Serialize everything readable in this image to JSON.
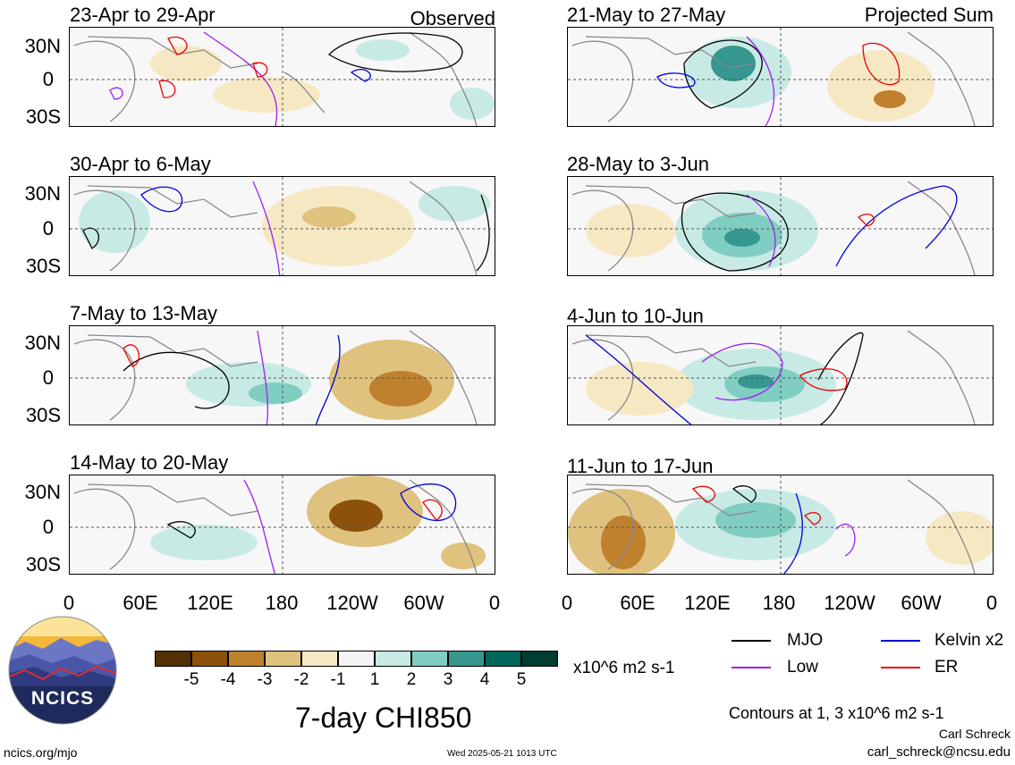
{
  "observed_label": "Observed",
  "projected_label": "Projected Sum",
  "panels_left": [
    {
      "title": "23-Apr to 29-Apr"
    },
    {
      "title": "30-Apr to 6-May"
    },
    {
      "title": "7-May to 13-May"
    },
    {
      "title": "14-May to 20-May"
    }
  ],
  "panels_right": [
    {
      "title": "21-May to 27-May"
    },
    {
      "title": "28-May to 3-Jun"
    },
    {
      "title": "4-Jun to 10-Jun"
    },
    {
      "title": "11-Jun to 17-Jun"
    }
  ],
  "lat_labels": [
    "30N",
    "0",
    "30S"
  ],
  "lon_labels": [
    "0",
    "60E",
    "120E",
    "180",
    "120W",
    "60W",
    "0"
  ],
  "colorbar": {
    "ticks": [
      "-5",
      "-4",
      "-3",
      "-2",
      "-1",
      "1",
      "2",
      "3",
      "4",
      "5"
    ],
    "colors": [
      "#543005",
      "#8c510a",
      "#bf812d",
      "#dfc27d",
      "#f6e8c3",
      "#f5f5f5",
      "#c7eae5",
      "#80cdc1",
      "#35978f",
      "#01665e",
      "#003c30"
    ],
    "units": "x10^6 m2 s-1"
  },
  "main_title": "7-day CHI850",
  "legend": [
    {
      "label": "MJO",
      "color": "#000000"
    },
    {
      "label": "Kelvin x2",
      "color": "#0000dd"
    },
    {
      "label": "Low",
      "color": "#a020f0"
    },
    {
      "label": "ER",
      "color": "#ee0000"
    }
  ],
  "contours_note": "Contours at 1, 3 x10^6 m2 s-1",
  "footer": {
    "site": "ncics.org/mjo",
    "timestamp": "Wed 2025-05-21 1013 UTC",
    "author": "Carl Schreck",
    "email": "carl_schreck@ncsu.edu"
  },
  "logo_text": "NCICS"
}
